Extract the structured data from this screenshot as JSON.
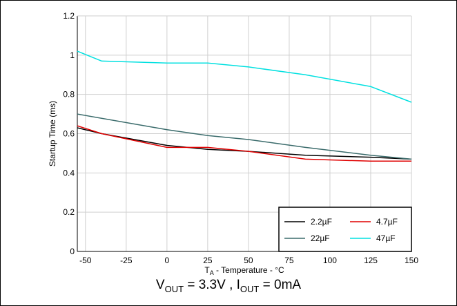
{
  "chart_data": {
    "type": "line",
    "xlabel": "T_A - Temperature - °C",
    "ylabel": "Startup Time (ms)",
    "xlim": [
      -55,
      150
    ],
    "ylim": [
      0,
      1.2
    ],
    "xticks": [
      -50,
      -25,
      0,
      25,
      50,
      75,
      100,
      125,
      150
    ],
    "xtick_labels": [
      "-50",
      "-25",
      "0",
      "25",
      "50",
      "75",
      "100",
      "125",
      "150"
    ],
    "yticks": [
      0,
      0.2,
      0.4,
      0.6,
      0.8,
      1.0,
      1.2
    ],
    "ytick_labels": [
      "0",
      "0.2",
      "0.4",
      "0.6",
      "0.8",
      "1",
      "1.2"
    ],
    "grid": true,
    "legend_position": "bottom-right",
    "series": [
      {
        "name": "2.2µF",
        "color": "#000000",
        "x": [
          -55,
          -40,
          0,
          25,
          50,
          85,
          125,
          150
        ],
        "y": [
          0.63,
          0.6,
          0.54,
          0.52,
          0.51,
          0.49,
          0.48,
          0.47
        ]
      },
      {
        "name": "4.7µF",
        "color": "#e00000",
        "x": [
          -55,
          -40,
          0,
          25,
          50,
          85,
          125,
          150
        ],
        "y": [
          0.64,
          0.6,
          0.53,
          0.53,
          0.51,
          0.47,
          0.46,
          0.46
        ]
      },
      {
        "name": "22µF",
        "color": "#3a6b6b",
        "x": [
          -55,
          0,
          25,
          50,
          85,
          125,
          150
        ],
        "y": [
          0.7,
          0.62,
          0.59,
          0.57,
          0.53,
          0.49,
          0.47
        ]
      },
      {
        "name": "47µF",
        "color": "#00e0e0",
        "x": [
          -55,
          -40,
          0,
          25,
          50,
          85,
          125,
          150
        ],
        "y": [
          1.02,
          0.97,
          0.96,
          0.96,
          0.94,
          0.9,
          0.84,
          0.76
        ]
      }
    ]
  },
  "caption": {
    "vout_label": "V",
    "vout_sub": "OUT",
    "vout_value": " = 3.3V , ",
    "iout_label": "I",
    "iout_sub": "OUT",
    "iout_value": " = 0mA"
  }
}
